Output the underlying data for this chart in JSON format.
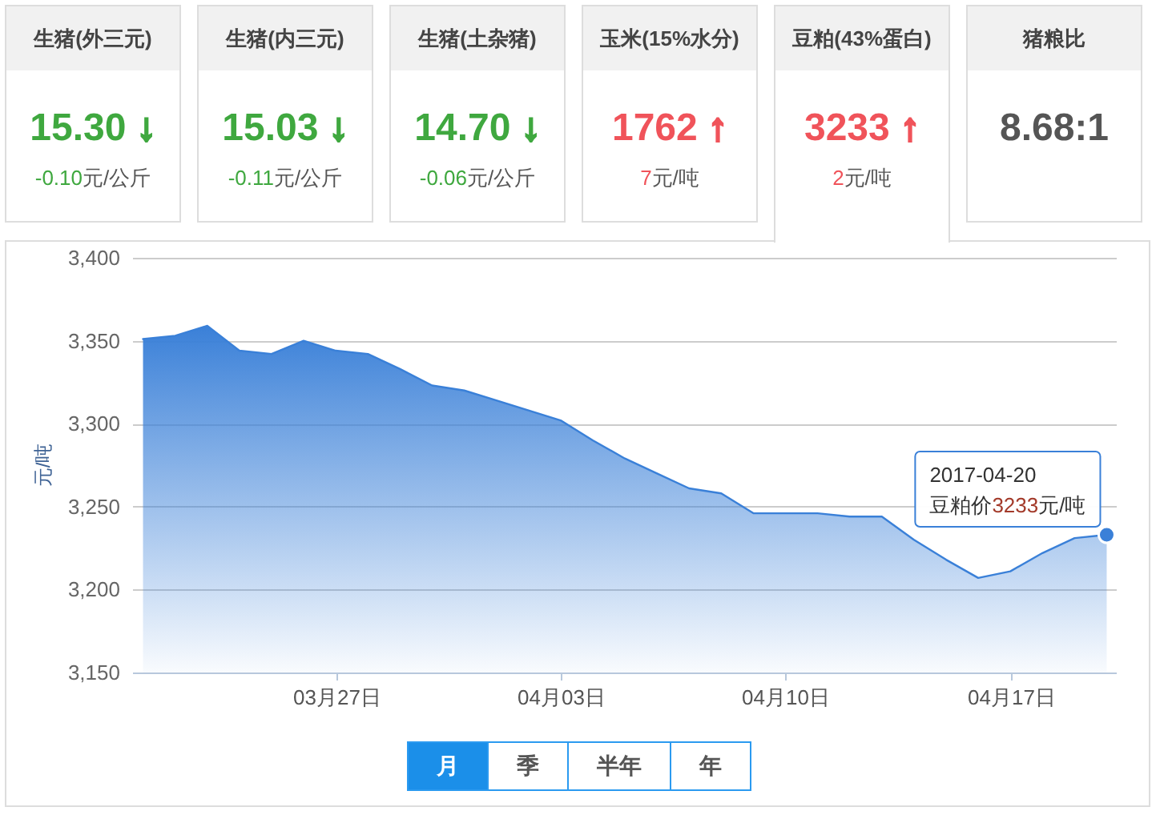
{
  "chart_data": [
    {
      "type": "other",
      "title": "生猪(外三元)",
      "annotations": [
        "15.30 ↓",
        "-0.10元/公斤"
      ],
      "color": "#3fa83f"
    },
    {
      "type": "other",
      "title": "生猪(内三元)",
      "annotations": [
        "15.03 ↓",
        "-0.11元/公斤"
      ],
      "color": "#3fa83f"
    },
    {
      "type": "other",
      "title": "生猪(土杂猪)",
      "annotations": [
        "14.70 ↓",
        "-0.06元/公斤"
      ],
      "color": "#3fa83f"
    },
    {
      "type": "other",
      "title": "玉米(15%水分)",
      "annotations": [
        "1762 ↑",
        "7元/吨"
      ],
      "color": "#f0535a"
    },
    {
      "type": "other",
      "title": "豆粕(43%蛋白)",
      "annotations": [
        "3233 ↑",
        "2元/吨"
      ],
      "color": "#f0535a"
    },
    {
      "type": "other",
      "title": "猪粮比",
      "annotations": [
        "8.68:1"
      ],
      "color": "#555555"
    },
    {
      "type": "area",
      "ylabel": "元/吨",
      "x": [
        "2017-03-21",
        "2017-03-22",
        "2017-03-23",
        "2017-03-24",
        "2017-03-25",
        "2017-03-26",
        "2017-03-27",
        "2017-03-28",
        "2017-03-29",
        "2017-03-30",
        "2017-03-31",
        "2017-04-01",
        "2017-04-02",
        "2017-04-03",
        "2017-04-04",
        "2017-04-05",
        "2017-04-06",
        "2017-04-07",
        "2017-04-08",
        "2017-04-09",
        "2017-04-10",
        "2017-04-11",
        "2017-04-12",
        "2017-04-13",
        "2017-04-14",
        "2017-04-15",
        "2017-04-16",
        "2017-04-17",
        "2017-04-18",
        "2017-04-19",
        "2017-04-20"
      ],
      "series": [
        {
          "color": "#3a80d8",
          "values": [
            3351,
            3353,
            3359,
            3344,
            3342,
            3350,
            3344,
            3342,
            3333,
            3323,
            3320,
            3314,
            3308,
            3302,
            3290,
            3279,
            3270,
            3261,
            3258,
            3246,
            3246,
            3246,
            3244,
            3244,
            3230,
            3218,
            3207,
            3211,
            3222,
            3231,
            3233
          ]
        }
      ],
      "xlim": [
        "2017-03-20T16:30",
        "2017-04-20T07:30"
      ],
      "ylim": [
        3150,
        3400
      ],
      "xticks": [
        {
          "value": "2017-03-27",
          "label": "03月27日"
        },
        {
          "value": "2017-04-03",
          "label": "04月03日"
        },
        {
          "value": "2017-04-10",
          "label": "04月10日"
        },
        {
          "value": "2017-04-17",
          "label": "04月17日"
        }
      ],
      "yticks": [
        {
          "value": 3150,
          "label": "3,150"
        },
        {
          "value": 3200,
          "label": "3,200"
        },
        {
          "value": 3250,
          "label": "3,250"
        },
        {
          "value": 3300,
          "label": "3,300"
        },
        {
          "value": 3350,
          "label": "3,350"
        },
        {
          "value": 3400,
          "label": "3,400"
        }
      ],
      "grid": "y",
      "annotations": [
        {
          "text": "2017-04-20\n豆粕价3233元/吨",
          "x": "2017-04-20",
          "y": 3233
        }
      ]
    },
    {
      "type": "other",
      "annotations": [
        "月",
        "季",
        "半年",
        "年"
      ]
    }
  ]
}
